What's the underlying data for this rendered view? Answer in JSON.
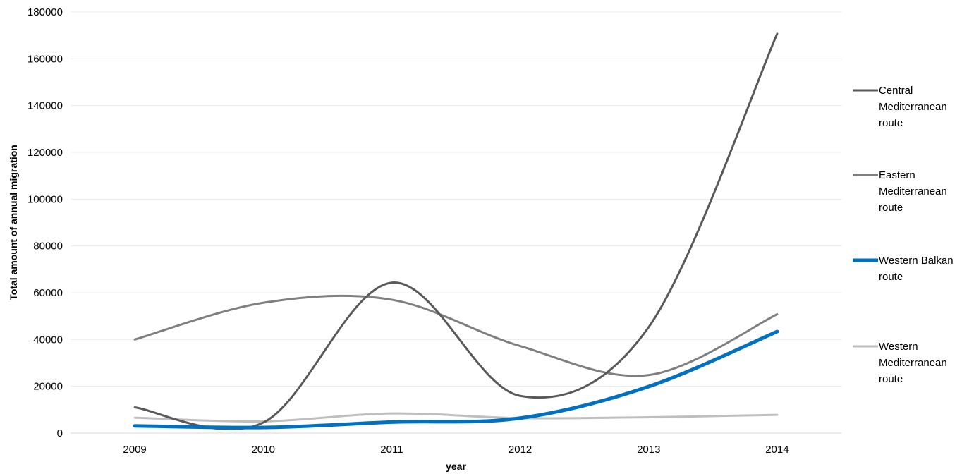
{
  "chart_data": {
    "type": "line",
    "xlabel": "year",
    "ylabel": "Total amount of annual migration",
    "x": [
      "2009",
      "2010",
      "2011",
      "2012",
      "2013",
      "2014"
    ],
    "ylim": [
      0,
      180000
    ],
    "yticks": [
      "0",
      "20000",
      "40000",
      "60000",
      "80000",
      "100000",
      "120000",
      "140000",
      "160000",
      "180000"
    ],
    "grid": true,
    "legend_position": "right",
    "series": [
      {
        "name": "Central Mediterranean route",
        "legend_lines": [
          "Central",
          "Mediterranean",
          "route"
        ],
        "color": "#595959",
        "width": 3,
        "values": [
          11000,
          4500,
          64300,
          15900,
          45300,
          170700
        ]
      },
      {
        "name": "Eastern Mediterranean route",
        "legend_lines": [
          "Eastern",
          "Mediterranean",
          "route"
        ],
        "color": "#7f7f7f",
        "width": 3,
        "values": [
          40000,
          55700,
          57000,
          37200,
          24800,
          50800
        ]
      },
      {
        "name": "Western Balkan route",
        "legend_lines": [
          "Western Balkan",
          "route"
        ],
        "color": "#0070c0",
        "width": 5,
        "values": [
          3100,
          2400,
          4700,
          6400,
          19900,
          43400
        ]
      },
      {
        "name": "Western Mediterranean route",
        "legend_lines": [
          "Western",
          "Mediterranean",
          "route"
        ],
        "color": "#bfbfbf",
        "width": 3,
        "values": [
          6600,
          5000,
          8400,
          6400,
          6800,
          7800
        ]
      }
    ]
  }
}
